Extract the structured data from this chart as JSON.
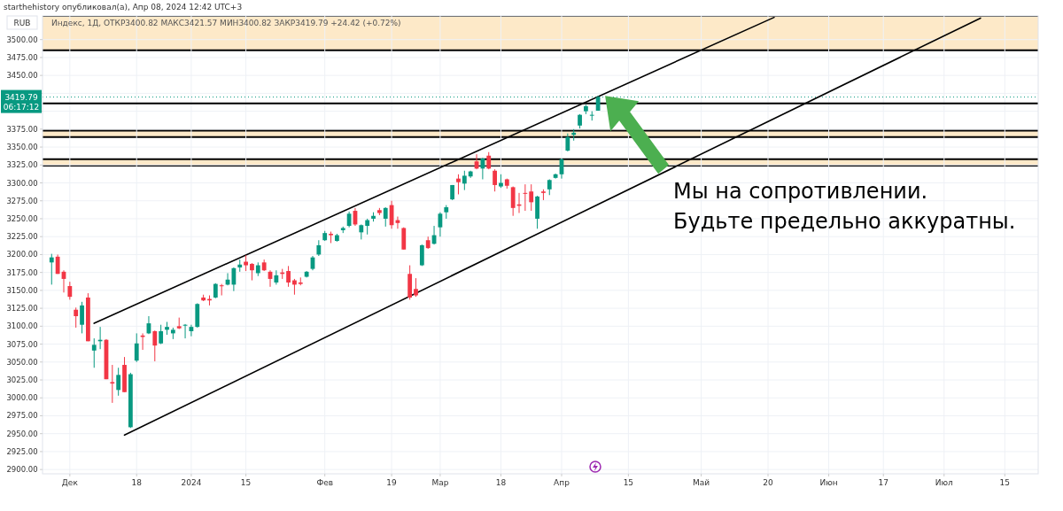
{
  "chart_data": {
    "type": "candlestick",
    "title": "Индекс, 1Д, ОТКР3400.82 МАКС3421.57 МИН3400.82 ЗАКР3419.79 +24.42 (+0.72%)",
    "ylabel": "RUB",
    "annotations": [
      "starthehistory опубликовал(а), Апр 08, 2024 12:42 UTC+3",
      "06:17:12",
      "Мы на сопротивлении.\nБудьте предельно аккуратны."
    ],
    "categories": [
      null,
      null,
      null,
      null,
      "Дек",
      null,
      null,
      null,
      null,
      null,
      null,
      null,
      null,
      null,
      null,
      "18",
      null,
      null,
      null,
      null,
      null,
      null,
      null,
      null,
      "2024",
      null,
      null,
      null,
      null,
      null,
      null,
      null,
      null,
      "15",
      null,
      null,
      null,
      null,
      null,
      null,
      null,
      null,
      null,
      null,
      null,
      null,
      "Фев",
      null,
      null,
      null,
      null,
      null,
      null,
      null,
      null,
      null,
      null,
      "19",
      null,
      null,
      null,
      null,
      null,
      null,
      null,
      "Мар",
      null,
      null,
      null,
      null,
      null,
      null,
      null,
      null,
      null,
      "18",
      null,
      null,
      null,
      null,
      null,
      null,
      null,
      null,
      null,
      "Апр",
      null,
      null,
      null,
      null,
      null,
      null,
      null,
      null,
      null,
      null,
      "15",
      null,
      null,
      null,
      null,
      null,
      null,
      null,
      null,
      null,
      null,
      null,
      "Май",
      null,
      null,
      null,
      null,
      null,
      null,
      null,
      null,
      null,
      null,
      "20",
      null,
      null,
      null,
      null,
      null,
      null,
      null,
      null,
      null,
      "Июн",
      null,
      null,
      null,
      null,
      null,
      null,
      null,
      null,
      "17",
      null,
      null,
      null,
      null,
      null,
      null,
      null,
      null,
      null,
      "Июл",
      null,
      null,
      null,
      null,
      null,
      null,
      null,
      null,
      null,
      "15",
      null,
      null,
      null,
      null,
      null
    ],
    "ohlc": [
      null,
      [
        3189,
        3201,
        3158,
        3196
      ],
      [
        3197,
        3200,
        3173,
        3173
      ],
      [
        3176,
        3178,
        3147,
        3166
      ],
      [
        3156,
        3162,
        3137,
        3141
      ],
      [
        3123,
        3126,
        3098,
        3114
      ],
      [
        3102,
        3134,
        3090,
        3129
      ],
      [
        3140,
        3146,
        3079,
        3079
      ],
      [
        3066,
        3083,
        3042,
        3074
      ],
      [
        3079,
        3099,
        3068,
        3081
      ],
      [
        3081,
        3082,
        3026,
        3026
      ],
      [
        3022,
        3046,
        2993,
        3020
      ],
      [
        3011,
        3042,
        3003,
        3032
      ],
      [
        3046,
        3057,
        3008,
        3008
      ],
      [
        2959,
        3035,
        2958,
        3033
      ],
      [
        3052,
        3090,
        3050,
        3076
      ],
      [
        3087,
        3090,
        3067,
        3085
      ],
      [
        3090,
        3114,
        3089,
        3104
      ],
      [
        3093,
        3094,
        3051,
        3073
      ],
      [
        3076,
        3102,
        3075,
        3093
      ],
      [
        3095,
        3106,
        3088,
        3099
      ],
      [
        3090,
        3098,
        3082,
        3095
      ],
      [
        3100,
        3112,
        3096,
        3097
      ],
      [
        3101,
        3103,
        3083,
        3102
      ],
      [
        3093,
        3102,
        3086,
        3099
      ],
      [
        3099,
        3132,
        3098,
        3131
      ],
      [
        3140,
        3144,
        3135,
        3136
      ],
      [
        3138,
        3143,
        3129,
        3136
      ],
      [
        3140,
        3160,
        3139,
        3159
      ],
      [
        3157,
        3159,
        3143,
        3156
      ],
      [
        3158,
        3174,
        3157,
        3165
      ],
      [
        3158,
        3182,
        3149,
        3181
      ],
      [
        3182,
        3193,
        3176,
        3186
      ],
      [
        3190,
        3199,
        3177,
        3185
      ],
      [
        3187,
        3188,
        3164,
        3178
      ],
      [
        3174,
        3189,
        3170,
        3185
      ],
      [
        3189,
        3193,
        3177,
        3178
      ],
      [
        3176,
        3178,
        3155,
        3166
      ],
      [
        3161,
        3178,
        3158,
        3171
      ],
      [
        3175,
        3180,
        3166,
        3173
      ],
      [
        3177,
        3184,
        3155,
        3161
      ],
      [
        3164,
        3166,
        3144,
        3158
      ],
      [
        3161,
        3168,
        3157,
        3159
      ],
      [
        3169,
        3177,
        3168,
        3176
      ],
      [
        3180,
        3198,
        3178,
        3196
      ],
      [
        3200,
        3220,
        3198,
        3213
      ],
      [
        3220,
        3233,
        3219,
        3230
      ],
      [
        3229,
        3232,
        3216,
        3227
      ],
      [
        3219,
        3229,
        3218,
        3227
      ],
      [
        3234,
        3239,
        3230,
        3237
      ],
      [
        3240,
        3260,
        3238,
        3257
      ],
      [
        3261,
        3265,
        3240,
        3242
      ],
      [
        3231,
        3242,
        3221,
        3241
      ],
      [
        3240,
        3250,
        3228,
        3248
      ],
      [
        3250,
        3259,
        3246,
        3254
      ],
      [
        3262,
        3265,
        3255,
        3258
      ],
      [
        3250,
        3266,
        3239,
        3265
      ],
      [
        3269,
        3275,
        3236,
        3241
      ],
      [
        3248,
        3253,
        3236,
        3244
      ],
      [
        3237,
        3238,
        3207,
        3207
      ],
      [
        3173,
        3185,
        3137,
        3140
      ],
      [
        3152,
        3167,
        3141,
        3143
      ],
      [
        3185,
        3214,
        3184,
        3213
      ],
      [
        3220,
        3225,
        3208,
        3209
      ],
      [
        3215,
        3240,
        3214,
        3227
      ],
      [
        3238,
        3259,
        3225,
        3257
      ],
      [
        3259,
        3269,
        3250,
        3266
      ],
      [
        3277,
        3297,
        3276,
        3297
      ],
      [
        3306,
        3312,
        3284,
        3301
      ],
      [
        3299,
        3317,
        3290,
        3310
      ],
      [
        3309,
        3317,
        3307,
        3316
      ],
      [
        3330,
        3340,
        3319,
        3320
      ],
      [
        3320,
        3335,
        3305,
        3334
      ],
      [
        3338,
        3343,
        3319,
        3320
      ],
      [
        3317,
        3319,
        3288,
        3297
      ],
      [
        3295,
        3312,
        3293,
        3300
      ],
      [
        3305,
        3306,
        3292,
        3296
      ],
      [
        3294,
        3295,
        3254,
        3265
      ],
      [
        3270,
        3286,
        3258,
        3268
      ],
      [
        3286,
        3298,
        3261,
        3285
      ],
      [
        3288,
        3298,
        3261,
        3273
      ],
      [
        3250,
        3282,
        3236,
        3281
      ],
      [
        3288,
        3291,
        3276,
        3286
      ],
      [
        3291,
        3305,
        3283,
        3304
      ],
      [
        3307,
        3313,
        3306,
        3312
      ],
      [
        3312,
        3334,
        3306,
        3333
      ],
      [
        3345,
        3369,
        3344,
        3364
      ],
      [
        3367,
        3375,
        3359,
        3370
      ],
      [
        3380,
        3396,
        3376,
        3395
      ],
      [
        3400,
        3409,
        3396,
        3407
      ],
      [
        3395,
        3400,
        3387,
        3395
      ],
      [
        3400.82,
        3421.57,
        3400.82,
        3419.79
      ],
      null,
      null,
      null,
      null,
      null,
      null,
      null,
      null,
      null,
      null,
      null,
      null,
      null,
      null,
      null,
      null,
      null,
      null,
      null,
      null,
      null,
      null,
      null,
      null,
      null,
      null,
      null,
      null,
      null,
      null,
      null,
      null,
      null,
      null,
      null,
      null,
      null,
      null,
      null,
      null,
      null,
      null,
      null,
      null,
      null,
      null,
      null,
      null,
      null,
      null,
      null,
      null,
      null,
      null,
      null,
      null,
      null,
      null,
      null,
      null,
      null,
      null,
      null,
      null,
      null,
      null,
      null,
      null,
      null,
      null,
      null,
      null
    ],
    "colors": [
      null,
      "#089981",
      "#f23645",
      "#f23645",
      "#f23645",
      "#f23645",
      "#089981",
      "#f23645",
      "#089981",
      "#089981",
      "#f23645",
      "#f23645",
      "#089981",
      "#f23645",
      "#089981",
      "#089981",
      "#f23645",
      "#089981",
      "#f23645",
      "#089981",
      "#089981",
      "#089981",
      "#f23645",
      "#089981",
      "#089981",
      "#089981",
      "#f23645",
      "#f23645",
      "#089981",
      "#f23645",
      "#089981",
      "#089981",
      "#089981",
      "#f23645",
      "#f23645",
      "#089981",
      "#f23645",
      "#f23645",
      "#089981",
      "#f23645",
      "#f23645",
      "#f23645",
      "#f23645",
      "#089981",
      "#089981",
      "#089981",
      "#089981",
      "#f23645",
      "#089981",
      "#089981",
      "#089981",
      "#f23645",
      "#089981",
      "#089981",
      "#089981",
      "#f23645",
      "#089981",
      "#f23645",
      "#f23645",
      "#f23645",
      "#f23645",
      "#f23645",
      "#089981",
      "#f23645",
      "#089981",
      "#089981",
      "#089981",
      "#089981",
      "#f23645",
      "#089981",
      "#089981",
      "#f23645",
      "#089981",
      "#f23645",
      "#f23645",
      "#089981",
      "#f23645",
      "#f23645",
      "#f23645",
      "#f23645",
      "#f23645",
      "#089981",
      "#f23645",
      "#089981",
      "#089981",
      "#089981",
      "#089981",
      "#089981",
      "#089981",
      "#089981",
      "#089981",
      "#089981",
      null,
      null,
      null,
      null,
      null,
      null,
      null,
      null,
      null,
      null,
      null,
      null,
      null,
      null,
      null,
      null,
      null,
      null,
      null,
      null,
      null,
      null,
      null,
      null,
      null,
      null,
      null,
      null,
      null,
      null,
      null,
      null,
      null,
      null,
      null,
      null,
      null,
      null,
      null,
      null,
      null,
      null,
      null,
      null,
      null,
      null,
      null,
      null,
      null,
      null,
      null,
      null,
      null,
      null,
      null,
      null,
      null,
      null,
      null,
      null,
      null,
      null,
      null,
      null,
      null,
      null,
      null,
      null,
      null,
      null,
      null,
      null
    ],
    "series": [
      {
        "type": "line",
        "color": "#000000",
        "values": [
          null,
          null,
          null,
          null,
          null,
          null,
          null,
          null,
          3104,
          null,
          null,
          null,
          null,
          null,
          null,
          null,
          null,
          null,
          null,
          null,
          null,
          null,
          null,
          null,
          null,
          null,
          null,
          null,
          null,
          null,
          null,
          null,
          null,
          null,
          null,
          null,
          null,
          null,
          null,
          null,
          null,
          null,
          null,
          null,
          null,
          null,
          null,
          null,
          null,
          null,
          null,
          null,
          null,
          null,
          null,
          null,
          null,
          null,
          null,
          null,
          null,
          null,
          null,
          null,
          null,
          null,
          null,
          null,
          null,
          null,
          null,
          null,
          null,
          null,
          null,
          null,
          null,
          null,
          null,
          null,
          null,
          null,
          null,
          null,
          null,
          null,
          null,
          null,
          null,
          null,
          null,
          null,
          null,
          null,
          null,
          null,
          null,
          null,
          null,
          null,
          null,
          null,
          null,
          null,
          null,
          null,
          null,
          null,
          null,
          null,
          null,
          null,
          null,
          null,
          null,
          null,
          null,
          null,
          null,
          null,
          3531,
          null,
          null,
          null,
          null,
          null,
          null,
          null,
          null,
          null,
          null,
          null,
          null,
          null,
          null,
          null,
          null,
          null,
          null,
          null,
          null,
          null,
          null,
          null,
          null,
          null,
          null,
          null,
          null,
          null,
          null,
          null,
          null,
          null,
          null,
          null,
          null,
          null,
          null,
          null,
          null,
          null,
          null,
          null
        ]
      },
      {
        "type": "line",
        "color": "#000000",
        "values": [
          null,
          null,
          null,
          null,
          null,
          null,
          null,
          null,
          null,
          null,
          null,
          null,
          null,
          2948,
          null,
          null,
          null,
          null,
          null,
          null,
          null,
          null,
          null,
          null,
          null,
          null,
          null,
          null,
          null,
          null,
          null,
          null,
          null,
          null,
          null,
          null,
          null,
          null,
          null,
          null,
          null,
          null,
          null,
          null,
          null,
          null,
          null,
          null,
          null,
          null,
          null,
          null,
          null,
          null,
          null,
          null,
          null,
          null,
          null,
          null,
          null,
          null,
          null,
          null,
          null,
          null,
          null,
          null,
          null,
          null,
          null,
          null,
          null,
          null,
          null,
          null,
          null,
          null,
          null,
          null,
          null,
          null,
          null,
          null,
          null,
          null,
          null,
          null,
          null,
          null,
          null,
          null,
          null,
          null,
          null,
          null,
          null,
          null,
          null,
          null,
          null,
          null,
          null,
          null,
          null,
          null,
          null,
          null,
          null,
          null,
          null,
          null,
          null,
          null,
          null,
          null,
          null,
          null,
          null,
          null,
          null,
          null,
          null,
          null,
          null,
          null,
          null,
          null,
          null,
          null,
          null,
          null,
          null,
          null,
          null,
          null,
          null,
          null,
          null,
          null,
          null,
          null,
          null,
          null,
          null,
          null,
          null,
          null,
          null,
          null,
          null,
          null,
          null,
          null,
          3530,
          null,
          null,
          null,
          null,
          null,
          null,
          null,
          null,
          null
        ]
      }
    ],
    "bands": [
      {
        "axis": "y",
        "from": 3485,
        "to": 3533,
        "color": "#fde9c8"
      },
      {
        "axis": "y",
        "from": 3364,
        "to": 3373,
        "color": "#fde9c8"
      },
      {
        "axis": "y",
        "from": 3324,
        "to": 3333,
        "color": "#fde9c8"
      }
    ],
    "ref_lines": [
      {
        "axis": "y",
        "value": 3411,
        "color": "#000000"
      },
      {
        "axis": "y",
        "value": 3419.79,
        "label": "3419.79",
        "color": "#089981",
        "line_style": "dotted"
      }
    ],
    "ylim": [
      2894,
      3533
    ],
    "yticks": [
      {
        "value": 2900,
        "label": "2900.00"
      },
      {
        "value": 2925,
        "label": "2925.00"
      },
      {
        "value": 2950,
        "label": "2950.00"
      },
      {
        "value": 2975,
        "label": "2975.00"
      },
      {
        "value": 3000,
        "label": "3000.00"
      },
      {
        "value": 3025,
        "label": "3025.00"
      },
      {
        "value": 3050,
        "label": "3050.00"
      },
      {
        "value": 3075,
        "label": "3075.00"
      },
      {
        "value": 3100,
        "label": "3100.00"
      },
      {
        "value": 3125,
        "label": "3125.00"
      },
      {
        "value": 3150,
        "label": "3150.00"
      },
      {
        "value": 3175,
        "label": "3175.00"
      },
      {
        "value": 3200,
        "label": "3200.00"
      },
      {
        "value": 3225,
        "label": "3225.00"
      },
      {
        "value": 3250,
        "label": "3250.00"
      },
      {
        "value": 3275,
        "label": "3275.00"
      },
      {
        "value": 3300,
        "label": "3300.00"
      },
      {
        "value": 3325,
        "label": "3325.00"
      },
      {
        "value": 3350,
        "label": "3350.00"
      },
      {
        "value": 3375,
        "label": "3375.00"
      },
      {
        "value": 3400,
        "label": null
      },
      {
        "value": 3425,
        "label": null
      },
      {
        "value": 3450,
        "label": "3450.00"
      },
      {
        "value": 3475,
        "label": "3475.00"
      },
      {
        "value": 3500,
        "label": "3500.00"
      }
    ],
    "grid": true
  }
}
